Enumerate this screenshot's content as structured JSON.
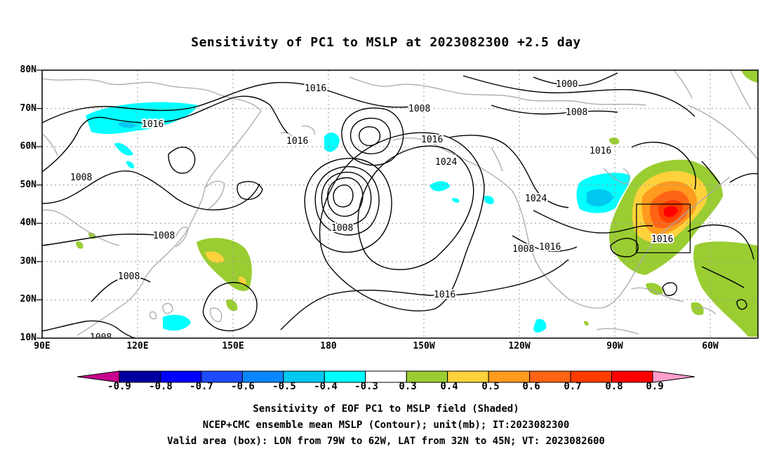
{
  "title": "Sensitivity of PC1 to MSLP at 2023082300 +2.5 day",
  "lat_labels": [
    "80N",
    "70N",
    "60N",
    "50N",
    "40N",
    "30N",
    "20N",
    "10N"
  ],
  "lon_labels": [
    "90E",
    "120E",
    "150E",
    "180",
    "150W",
    "120W",
    "90W",
    "60W"
  ],
  "contour_labels": [
    "1016",
    "1008",
    "1016",
    "1016",
    "1016",
    "1008",
    "1024",
    "1024",
    "1008",
    "1016",
    "1016",
    "1008",
    "1008",
    "1008",
    "1016",
    "1000",
    "1008",
    "1016",
    "1008"
  ],
  "colorbar": {
    "labels": [
      "-0.9",
      "-0.8",
      "-0.7",
      "-0.6",
      "-0.5",
      "-0.4",
      "-0.3",
      "0.3",
      "0.4",
      "0.5",
      "0.6",
      "0.7",
      "0.8",
      "0.9"
    ],
    "colors": [
      "#0000a0",
      "#0000ff",
      "#1e4bff",
      "#0a87ff",
      "#00c8f0",
      "#00ffff",
      "#ffffff",
      "#9acd32",
      "#ffd23c",
      "#ff9b1e",
      "#ff6414",
      "#ff3c00",
      "#ff0000"
    ],
    "low_end_color": "#c8008c",
    "high_end_color": "#ff9ecd"
  },
  "colors": {
    "land": "#aaaaaa",
    "contour": "#000000",
    "grid": "#999999"
  },
  "captions": {
    "line1": "Sensitivity of EOF PC1 to MSLP field (Shaded)",
    "line2": "NCEP+CMC ensemble mean MSLP (Contour); unit(mb); IT:2023082300",
    "line3": "Valid area (box): LON from 79W to 62W, LAT from 32N to 45N; VT: 2023082600"
  }
}
